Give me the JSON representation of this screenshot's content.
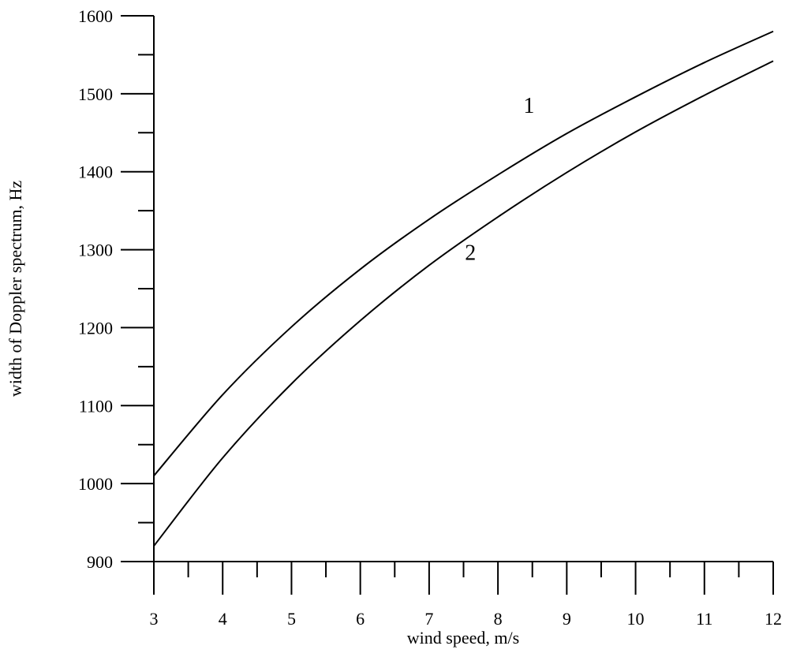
{
  "chart_data": {
    "type": "line",
    "title": "",
    "xlabel": "wind speed, m/s",
    "ylabel": "width of Doppler spectrum, Hz",
    "xlim": [
      3,
      12
    ],
    "ylim": [
      900,
      1600
    ],
    "x_ticks": [
      3,
      4,
      5,
      6,
      7,
      8,
      9,
      10,
      11,
      12
    ],
    "y_ticks": [
      900,
      1000,
      1100,
      1200,
      1300,
      1400,
      1500,
      1600
    ],
    "grid": false,
    "legend": "none",
    "line_color": "#000000",
    "series": [
      {
        "name": "1",
        "x": [
          3,
          4,
          5,
          6,
          7,
          8,
          9,
          10,
          11,
          12
        ],
        "y": [
          1010,
          1114,
          1201,
          1275,
          1339,
          1396,
          1449,
          1496,
          1540,
          1580
        ]
      },
      {
        "name": "2",
        "x": [
          3,
          4,
          5,
          6,
          7,
          8,
          9,
          10,
          11,
          12
        ],
        "y": [
          920,
          1033,
          1128,
          1209,
          1280,
          1342,
          1399,
          1451,
          1498,
          1542
        ]
      }
    ]
  }
}
